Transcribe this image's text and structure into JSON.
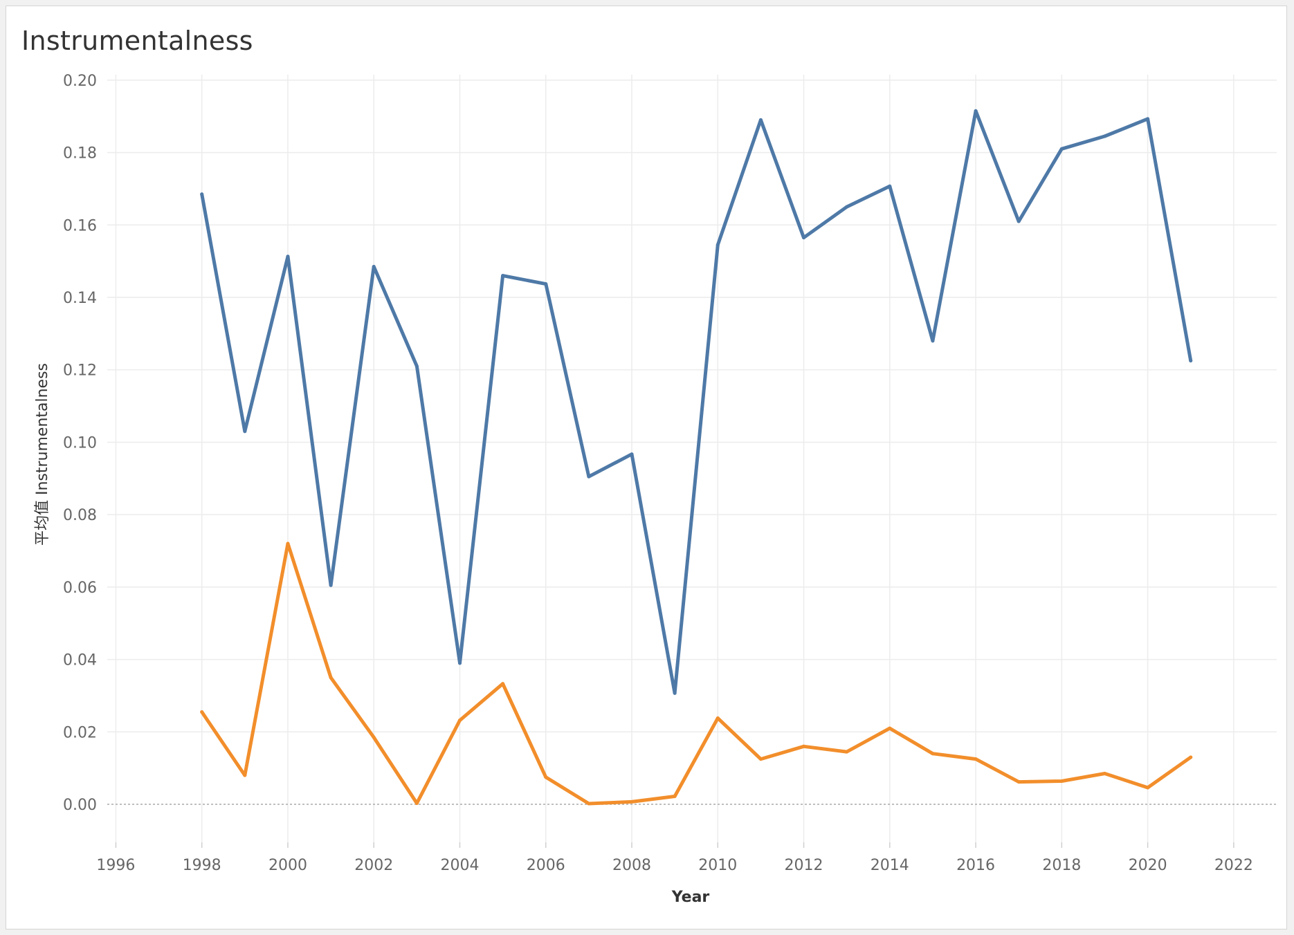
{
  "chart_data": {
    "type": "line",
    "title": "Instrumentalness",
    "xlabel": "Year",
    "ylabel": "平均值 Instrumentalness",
    "xlim": [
      1995.8,
      2023.0
    ],
    "ylim": [
      -0.0105,
      0.2015
    ],
    "x_ticks": [
      1996,
      1998,
      2000,
      2002,
      2004,
      2006,
      2008,
      2010,
      2012,
      2014,
      2016,
      2018,
      2020,
      2022
    ],
    "y_ticks": [
      0.0,
      0.02,
      0.04,
      0.06,
      0.08,
      0.1,
      0.12,
      0.14,
      0.16,
      0.18,
      0.2
    ],
    "y_tick_labels": [
      "0.00",
      "0.02",
      "0.04",
      "0.06",
      "0.08",
      "0.10",
      "0.12",
      "0.14",
      "0.16",
      "0.18",
      "0.20"
    ],
    "x_tick_labels": [
      "1996",
      "1998",
      "2000",
      "2002",
      "2004",
      "2006",
      "2008",
      "2010",
      "2012",
      "2014",
      "2016",
      "2018",
      "2020",
      "2022"
    ],
    "grid": true,
    "zero_line": true,
    "x": [
      1998,
      1999,
      2000,
      2001,
      2002,
      2003,
      2004,
      2005,
      2006,
      2007,
      2008,
      2009,
      2010,
      2011,
      2012,
      2013,
      2014,
      2015,
      2016,
      2017,
      2018,
      2019,
      2020,
      2021
    ],
    "series": [
      {
        "name": "blue-series",
        "color": "#4e79a7",
        "values": [
          0.1685,
          0.103,
          0.1513,
          0.0605,
          0.1485,
          0.121,
          0.039,
          0.146,
          0.1437,
          0.0905,
          0.0967,
          0.0307,
          0.1545,
          0.189,
          0.1565,
          0.165,
          0.1707,
          0.128,
          0.1915,
          0.161,
          0.181,
          0.1845,
          0.1893,
          0.1225
        ]
      },
      {
        "name": "orange-series",
        "color": "#f28e2b",
        "values": [
          0.0255,
          0.008,
          0.072,
          0.035,
          0.0185,
          0.0003,
          0.0232,
          0.0333,
          0.0075,
          0.0002,
          0.0007,
          0.0022,
          0.0238,
          0.0125,
          0.016,
          0.0145,
          0.021,
          0.014,
          0.0125,
          0.0062,
          0.0064,
          0.0085,
          0.0046,
          0.013
        ]
      }
    ]
  }
}
